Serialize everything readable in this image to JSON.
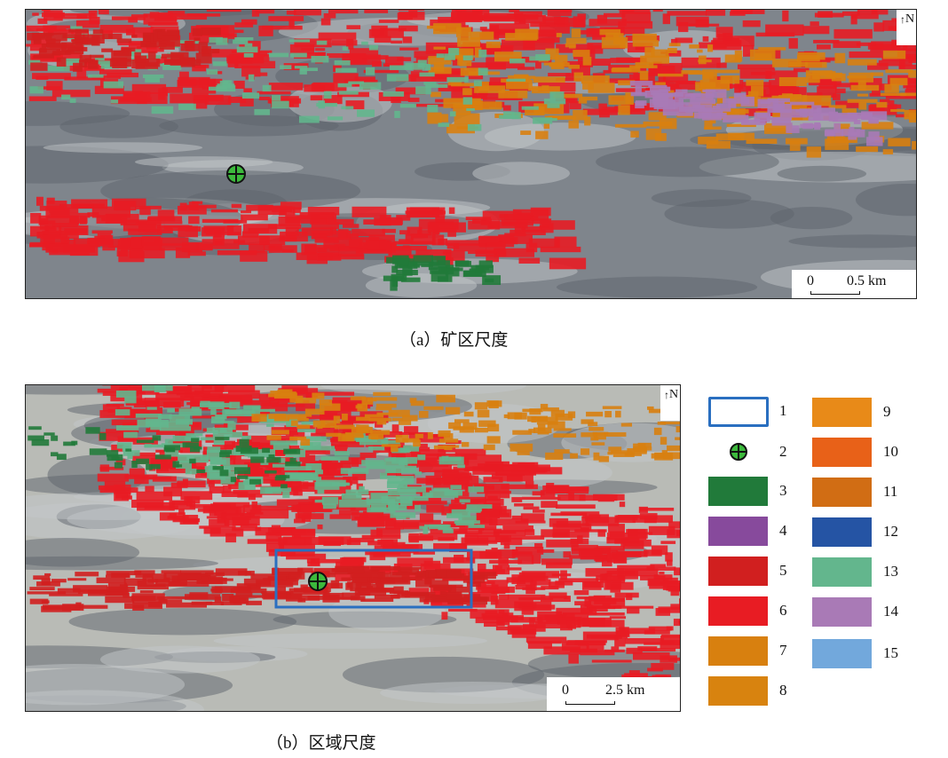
{
  "panel_a": {
    "caption": "（a）矿区尺度",
    "scale_zero": "0",
    "scale_label": "0.5 km",
    "north_label": "N"
  },
  "panel_b": {
    "caption": "（b）区域尺度",
    "scale_zero": "0",
    "scale_label": "2.5 km",
    "north_label": "N"
  },
  "legend": {
    "items": [
      {
        "label": "1",
        "kind": "outline-box",
        "color": "#2a6fc0"
      },
      {
        "label": "2",
        "kind": "mine-site-symbol",
        "color": "#3cb93c"
      },
      {
        "label": "3",
        "color": "#217a3a"
      },
      {
        "label": "4",
        "color": "#874a9c"
      },
      {
        "label": "5",
        "color": "#d11f1f"
      },
      {
        "label": "6",
        "color": "#e81c23"
      },
      {
        "label": "7",
        "color": "#d8800f"
      },
      {
        "label": "8",
        "color": "#d8830f"
      },
      {
        "label": "9",
        "color": "#e88a18"
      },
      {
        "label": "10",
        "color": "#e86118"
      },
      {
        "label": "11",
        "color": "#d16d14"
      },
      {
        "label": "12",
        "color": "#2554a4"
      },
      {
        "label": "13",
        "color": "#63b68d"
      },
      {
        "label": "14",
        "color": "#a97ab6"
      },
      {
        "label": "15",
        "color": "#72a8dc"
      }
    ]
  }
}
